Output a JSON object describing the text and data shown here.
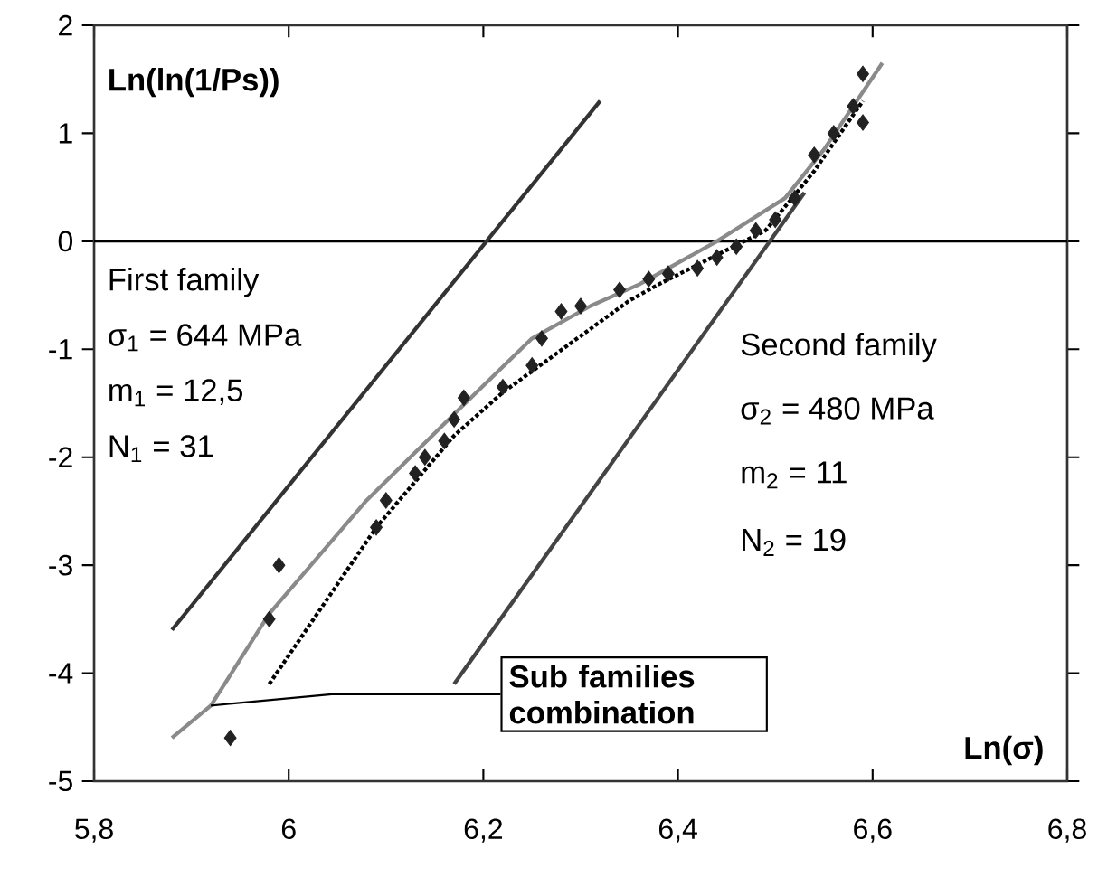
{
  "chart_data": {
    "type": "scatter",
    "xlabel": "Ln(σ)",
    "ylabel": "Ln(ln(1/Ps))",
    "xlim": [
      5.8,
      6.8
    ],
    "ylim": [
      -5,
      2
    ],
    "xticks": [
      {
        "value": 5.8,
        "label": "5,8"
      },
      {
        "value": 6,
        "label": "6"
      },
      {
        "value": 6.2,
        "label": "6,2"
      },
      {
        "value": 6.4,
        "label": "6,4"
      },
      {
        "value": 6.6,
        "label": "6,6"
      },
      {
        "value": 6.8,
        "label": "6,8"
      }
    ],
    "yticks": [
      -5,
      -4,
      -3,
      -2,
      -1,
      0,
      1,
      2
    ],
    "grid": false,
    "ref_lines": [
      {
        "axis": "y",
        "value": 0,
        "color": "#000000"
      }
    ],
    "series": [
      {
        "type": "line",
        "color": "#333333",
        "line_style": "solid",
        "marker": "none",
        "x": [
          5.88,
          6.32
        ],
        "values": [
          -3.6,
          1.3
        ]
      },
      {
        "type": "line",
        "color": "#444444",
        "line_style": "solid",
        "marker": "none",
        "x": [
          6.17,
          6.53
        ],
        "values": [
          -4.1,
          0.45
        ]
      },
      {
        "type": "line",
        "color": "#8a8a8a",
        "line_style": "solid",
        "marker": "none",
        "x": [
          5.88,
          5.92,
          5.98,
          6.08,
          6.17,
          6.25,
          6.31,
          6.36,
          6.44,
          6.51,
          6.55,
          6.61
        ],
        "values": [
          -4.6,
          -4.3,
          -3.45,
          -2.4,
          -1.6,
          -0.9,
          -0.6,
          -0.4,
          0.0,
          0.4,
          0.85,
          1.65
        ]
      },
      {
        "type": "line",
        "color": "#000000",
        "line_style": "dotted",
        "marker": "none",
        "x": [
          5.98,
          6.09,
          6.17,
          6.22,
          6.35,
          6.38,
          6.49,
          6.54,
          6.59
        ],
        "values": [
          -4.1,
          -2.65,
          -1.8,
          -1.4,
          -0.55,
          -0.4,
          0.1,
          0.65,
          1.3
        ]
      },
      {
        "color": "#222222",
        "marker": "diamond",
        "x": [
          5.94,
          5.98,
          5.99,
          6.09,
          6.1,
          6.13,
          6.14,
          6.16,
          6.17,
          6.18,
          6.22,
          6.25,
          6.26,
          6.28,
          6.3,
          6.34,
          6.37,
          6.39,
          6.42,
          6.44,
          6.46,
          6.48,
          6.5,
          6.52,
          6.54,
          6.56,
          6.58,
          6.59,
          6.59
        ],
        "values": [
          -4.6,
          -3.5,
          -3.0,
          -2.65,
          -2.4,
          -2.15,
          -2.0,
          -1.85,
          -1.65,
          -1.45,
          -1.35,
          -1.15,
          -0.9,
          -0.65,
          -0.6,
          -0.45,
          -0.35,
          -0.3,
          -0.25,
          -0.15,
          -0.05,
          0.1,
          0.2,
          0.4,
          0.8,
          1.0,
          1.25,
          1.1,
          1.55
        ]
      }
    ],
    "annotations": [
      "First family",
      "σ$_{1}$ = 644 MPa",
      "m$_{1}$ = 12,5",
      "N$_{1}$ = 31",
      "Second family",
      "σ$_{2}$ = 480 MPa",
      "m$_{2}$ = 11",
      "N$_{2}$ = 19",
      {
        "text": "Sub families combination",
        "x": 5.92,
        "y": -4.3
      }
    ]
  }
}
